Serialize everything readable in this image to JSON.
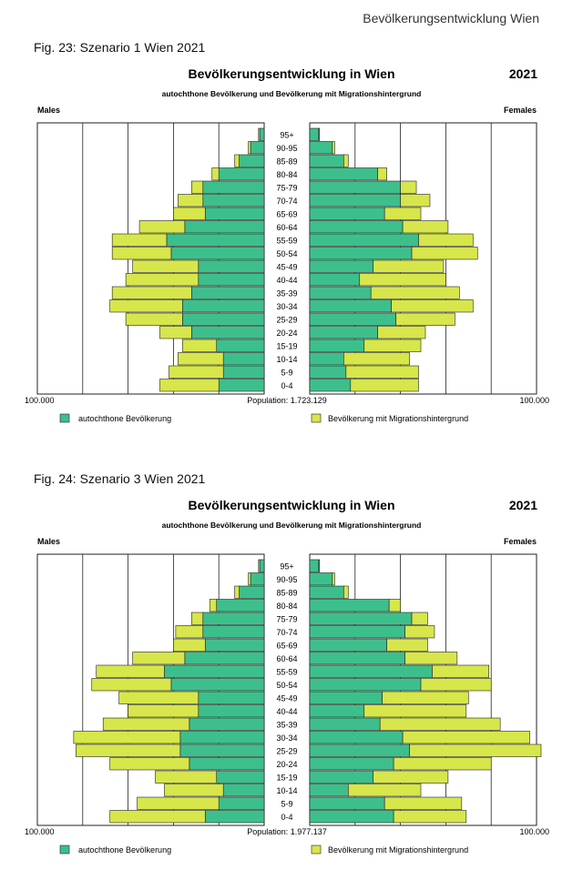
{
  "page": {
    "running_header": "Bevölkerungsentwicklung Wien"
  },
  "colors": {
    "autochthon": "#3dbf8c",
    "migration": "#d7e64a",
    "outline": "#222222"
  },
  "figures": [
    {
      "caption": "Fig.  23: Szenario 1 Wien  2021",
      "title": "Bevölkerungsentwicklung in Wien",
      "year": "2021",
      "subtitle": "autochthone Bevölkerung und Bevölkerung mit Migrationshintergrund",
      "males_label": "Males",
      "females_label": "Females",
      "left_axis_label": "100.000",
      "right_axis_label": "100.000",
      "population_text": "Population:  1.723.129",
      "legend": [
        "autochthone Bevölkerung",
        "Bevölkerung mit Migrationshintergrund"
      ]
    },
    {
      "caption": "Fig.  24: Szenario 3 Wien 2021",
      "title": "Bevölkerungsentwicklung in Wien",
      "year": "2021",
      "subtitle": "autochthone Bevölkerung und Bevölkerung mit Migrationshintergrund",
      "males_label": "Males",
      "females_label": "Females",
      "left_axis_label": "100.000",
      "right_axis_label": "100.000",
      "population_text": "Population:  1.977.137",
      "legend": [
        "autochthone Bevölkerung",
        "Bevölkerung mit Migrationshintergrund"
      ]
    }
  ],
  "chart_data": [
    {
      "type": "bar",
      "orientation": "horizontal-pyramid",
      "xlim": [
        0,
        100000
      ],
      "categories": [
        "95+",
        "90-95",
        "85-89",
        "80-84",
        "75-79",
        "70-74",
        "65-69",
        "60-64",
        "55-59",
        "50-54",
        "45-49",
        "40-44",
        "35-39",
        "30-34",
        "25-29",
        "20-24",
        "15-19",
        "10-14",
        "5-9",
        "0-4"
      ],
      "series": [
        {
          "name": "Males autochthone Bevölkerung",
          "values": [
            2000,
            6000,
            11000,
            20000,
            27000,
            27000,
            26000,
            35000,
            43000,
            41000,
            29000,
            29000,
            32000,
            36000,
            36000,
            32000,
            21000,
            18000,
            18000,
            20000
          ]
        },
        {
          "name": "Males Bevölkerung mit Migrationshintergrund",
          "values": [
            500,
            1000,
            2000,
            3000,
            5000,
            11000,
            14000,
            20000,
            24000,
            26000,
            29000,
            32000,
            35000,
            32000,
            25000,
            14000,
            15000,
            20000,
            24000,
            26000
          ]
        },
        {
          "name": "Females autochthone Bevölkerung",
          "values": [
            4000,
            10000,
            15000,
            30000,
            40000,
            40000,
            33000,
            41000,
            48000,
            45000,
            28000,
            22000,
            27000,
            36000,
            38000,
            30000,
            24000,
            15000,
            16000,
            18000
          ]
        },
        {
          "name": "Females Bevölkerung mit Migrationshintergrund",
          "values": [
            300,
            1000,
            2000,
            4000,
            7000,
            13000,
            16000,
            20000,
            24000,
            29000,
            31000,
            38000,
            39000,
            36000,
            26000,
            21000,
            25000,
            29000,
            32000,
            30000
          ]
        }
      ]
    },
    {
      "type": "bar",
      "orientation": "horizontal-pyramid",
      "xlim": [
        0,
        100000
      ],
      "categories": [
        "95+",
        "90-95",
        "85-89",
        "80-84",
        "75-79",
        "70-74",
        "65-69",
        "60-64",
        "55-59",
        "50-54",
        "45-49",
        "40-44",
        "35-39",
        "30-34",
        "25-29",
        "20-24",
        "15-19",
        "10-14",
        "5-9",
        "0-4"
      ],
      "series": [
        {
          "name": "Males autochthone Bevölkerung",
          "values": [
            2000,
            6000,
            11000,
            21000,
            27000,
            27000,
            26000,
            35000,
            44000,
            41000,
            29000,
            29000,
            33000,
            37000,
            37000,
            33000,
            21000,
            18000,
            20000,
            26000
          ]
        },
        {
          "name": "Males Bevölkerung mit Migrationshintergrund",
          "values": [
            500,
            1000,
            2000,
            3000,
            5000,
            12000,
            14000,
            23000,
            30000,
            35000,
            35000,
            31000,
            38000,
            47000,
            46000,
            35000,
            27000,
            26000,
            36000,
            42000
          ]
        },
        {
          "name": "Females autochthone Bevölkerung",
          "values": [
            4000,
            10000,
            15000,
            35000,
            45000,
            42000,
            34000,
            42000,
            54000,
            49000,
            32000,
            24000,
            31000,
            41000,
            44000,
            37000,
            28000,
            17000,
            33000,
            37000
          ]
        },
        {
          "name": "Females Bevölkerung mit Migrationshintergrund",
          "values": [
            300,
            1000,
            2000,
            5000,
            7000,
            13000,
            18000,
            23000,
            25000,
            31000,
            38000,
            45000,
            53000,
            56000,
            58000,
            43000,
            33000,
            32000,
            34000,
            32000
          ]
        }
      ]
    }
  ]
}
